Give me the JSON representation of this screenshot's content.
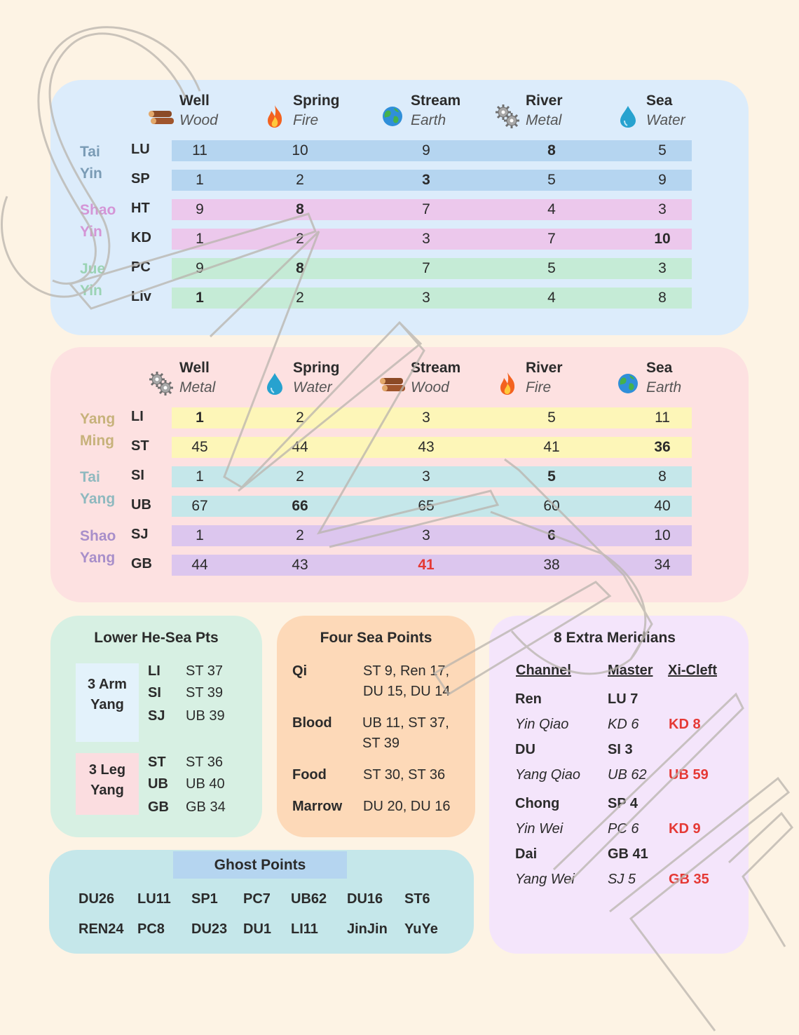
{
  "colors": {
    "background": "#fdf3e4",
    "yin_panel": "#dcecfb",
    "yang_panel": "#fde1e1",
    "tai_yin": "#7a9bb5",
    "shao_yin": "#d495d6",
    "jue_yin": "#9bd3b4",
    "yang_ming": "#c7b27b",
    "tai_yang": "#8fb9bf",
    "shao_yang": "#a88fca",
    "red_text": "#e53935"
  },
  "yin_table": {
    "headers": [
      {
        "point": "Well",
        "element": "Wood",
        "icon": "wood-logs-icon"
      },
      {
        "point": "Spring",
        "element": "Fire",
        "icon": "fire-icon"
      },
      {
        "point": "Stream",
        "element": "Earth",
        "icon": "earth-globe-icon"
      },
      {
        "point": "River",
        "element": "Metal",
        "icon": "metal-gears-icon"
      },
      {
        "point": "Sea",
        "element": "Water",
        "icon": "water-drop-icon"
      }
    ],
    "groups": [
      {
        "line1": "Tai",
        "line2": "Yin"
      },
      {
        "line1": "Shao",
        "line2": "Yin"
      },
      {
        "line1": "Jue",
        "line2": "Yin"
      }
    ],
    "rows": [
      {
        "code": "LU",
        "bar_color": "#b5d5f0",
        "values": [
          "11",
          "10",
          "9",
          "8",
          "5"
        ],
        "bold": [
          3
        ],
        "red": []
      },
      {
        "code": "SP",
        "bar_color": "#b5d5f0",
        "values": [
          "1",
          "2",
          "3",
          "5",
          "9"
        ],
        "bold": [
          2
        ],
        "red": []
      },
      {
        "code": "HT",
        "bar_color": "#ecc8ec",
        "values": [
          "9",
          "8",
          "7",
          "4",
          "3"
        ],
        "bold": [
          1
        ],
        "red": []
      },
      {
        "code": "KD",
        "bar_color": "#ecc8ec",
        "values": [
          "1",
          "2",
          "3",
          "7",
          "10"
        ],
        "bold": [
          4
        ],
        "red": []
      },
      {
        "code": "PC",
        "bar_color": "#c5ebd6",
        "values": [
          "9",
          "8",
          "7",
          "5",
          "3"
        ],
        "bold": [
          1
        ],
        "red": []
      },
      {
        "code": "Liv",
        "bar_color": "#c5ebd6",
        "values": [
          "1",
          "2",
          "3",
          "4",
          "8"
        ],
        "bold": [
          0
        ],
        "red": []
      }
    ]
  },
  "yang_table": {
    "headers": [
      {
        "point": "Well",
        "element": "Metal",
        "icon": "metal-gears-icon"
      },
      {
        "point": "Spring",
        "element": "Water",
        "icon": "water-drop-icon"
      },
      {
        "point": "Stream",
        "element": "Wood",
        "icon": "wood-logs-icon"
      },
      {
        "point": "River",
        "element": "Fire",
        "icon": "fire-icon"
      },
      {
        "point": "Sea",
        "element": "Earth",
        "icon": "earth-globe-icon"
      }
    ],
    "groups": [
      {
        "line1": "Yang",
        "line2": "Ming"
      },
      {
        "line1": "Tai",
        "line2": "Yang"
      },
      {
        "line1": "Shao",
        "line2": "Yang"
      }
    ],
    "rows": [
      {
        "code": "LI",
        "bar_color": "#fdf6b8",
        "values": [
          "1",
          "2",
          "3",
          "5",
          "11"
        ],
        "bold": [
          0
        ],
        "red": []
      },
      {
        "code": "ST",
        "bar_color": "#fdf6b8",
        "values": [
          "45",
          "44",
          "43",
          "41",
          "36"
        ],
        "bold": [
          4
        ],
        "red": []
      },
      {
        "code": "SI",
        "bar_color": "#c5e7ea",
        "values": [
          "1",
          "2",
          "3",
          "5",
          "8"
        ],
        "bold": [
          3
        ],
        "red": []
      },
      {
        "code": "UB",
        "bar_color": "#c5e7ea",
        "values": [
          "67",
          "66",
          "65",
          "60",
          "40"
        ],
        "bold": [
          1
        ],
        "red": []
      },
      {
        "code": "SJ",
        "bar_color": "#dcc6ee",
        "values": [
          "1",
          "2",
          "3",
          "6",
          "10"
        ],
        "bold": [
          3
        ],
        "red": []
      },
      {
        "code": "GB",
        "bar_color": "#dcc6ee",
        "values": [
          "44",
          "43",
          "41",
          "38",
          "34"
        ],
        "bold": [],
        "red": [
          2
        ]
      }
    ]
  },
  "lower_he_sea": {
    "title": "Lower He-Sea Pts",
    "arm": {
      "label_line1": "3 Arm",
      "label_line2": "Yang",
      "color": "#e3f2fb",
      "items": [
        {
          "ch": "LI",
          "pt": "ST 37"
        },
        {
          "ch": "SI",
          "pt": "ST 39"
        },
        {
          "ch": "SJ",
          "pt": "UB 39"
        }
      ]
    },
    "leg": {
      "label_line1": "3 Leg",
      "label_line2": "Yang",
      "color": "#fbdde0",
      "items": [
        {
          "ch": "ST",
          "pt": "ST 36"
        },
        {
          "ch": "UB",
          "pt": "UB 40"
        },
        {
          "ch": "GB",
          "pt": "GB 34"
        }
      ]
    }
  },
  "four_sea": {
    "title": "Four Sea Points",
    "items": [
      {
        "name": "Qi",
        "line1": "ST 9, Ren 17,",
        "line2": "DU 15, DU 14"
      },
      {
        "name": "Blood",
        "line1": "UB 11, ST 37,",
        "line2": "ST 39"
      },
      {
        "name": "Food",
        "line1": "ST 30, ST 36",
        "line2": ""
      },
      {
        "name": "Marrow",
        "line1": "DU 20, DU 16",
        "line2": ""
      }
    ]
  },
  "extra_meridians": {
    "title": "8 Extra Meridians",
    "col_headers": {
      "channel": "Channel",
      "master": "Master",
      "cleft": "Xi-Cleft"
    },
    "rows": [
      {
        "channel": "Ren",
        "master": "LU 7",
        "cleft": "",
        "italic": false
      },
      {
        "channel": "Yin Qiao",
        "master": "KD 6",
        "cleft": "KD 8",
        "italic": true
      },
      {
        "channel": "DU",
        "master": "SI 3",
        "cleft": "",
        "italic": false
      },
      {
        "channel": "Yang Qiao",
        "master": "UB 62",
        "cleft": "UB 59",
        "italic": true
      },
      {
        "channel": "Chong",
        "master": "SP 4",
        "cleft": "",
        "italic": false
      },
      {
        "channel": "Yin Wei",
        "master": "PC 6",
        "cleft": "KD 9",
        "italic": true
      },
      {
        "channel": "Dai",
        "master": "GB 41",
        "cleft": "",
        "italic": false
      },
      {
        "channel": "Yang Wei",
        "master": "SJ 5",
        "cleft": "GB 35",
        "italic": true
      }
    ]
  },
  "ghost_points": {
    "title": "Ghost Points",
    "row1": [
      "DU26",
      "LU11",
      "SP1",
      "PC7",
      "UB62",
      "DU16",
      "ST6"
    ],
    "row2": [
      "REN24",
      "PC8",
      "DU23",
      "DU1",
      "LI11",
      "JinJin",
      "YuYe"
    ]
  }
}
